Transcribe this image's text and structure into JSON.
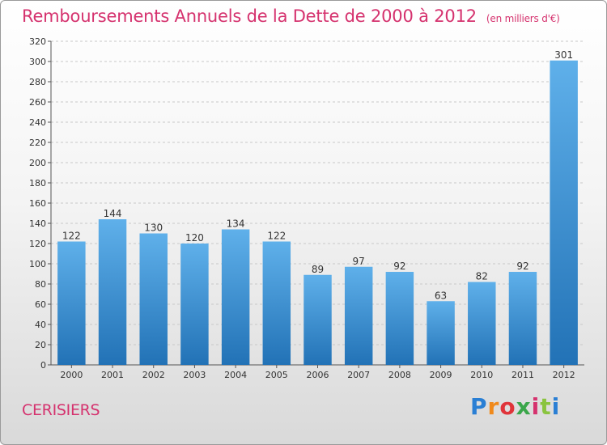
{
  "header": {
    "title": "Remboursements Annuels de la Dette de 2000 à 2012",
    "unit": "(en milliers d'€)"
  },
  "footer": {
    "town": "CERISIERS",
    "logo_letters": [
      "P",
      "r",
      "o",
      "x",
      "i",
      "t",
      "i"
    ]
  },
  "colors": {
    "bar_top": "#5fb0ea",
    "bar_bottom": "#2272b6",
    "title": "#d5326e"
  },
  "chart_data": {
    "type": "bar",
    "title": "Remboursements Annuels de la Dette de 2000 à 2012",
    "subtitle": "(en milliers d'€)",
    "xlabel": "",
    "ylabel": "",
    "categories": [
      "2000",
      "2001",
      "2002",
      "2003",
      "2004",
      "2005",
      "2006",
      "2007",
      "2008",
      "2009",
      "2010",
      "2011",
      "2012"
    ],
    "values": [
      122,
      144,
      130,
      120,
      134,
      122,
      89,
      97,
      92,
      63,
      82,
      92,
      301
    ],
    "ylim": [
      0,
      320
    ],
    "yticks": [
      0,
      20,
      40,
      60,
      80,
      100,
      120,
      140,
      160,
      180,
      200,
      220,
      240,
      260,
      280,
      300,
      320
    ],
    "grid": true
  }
}
